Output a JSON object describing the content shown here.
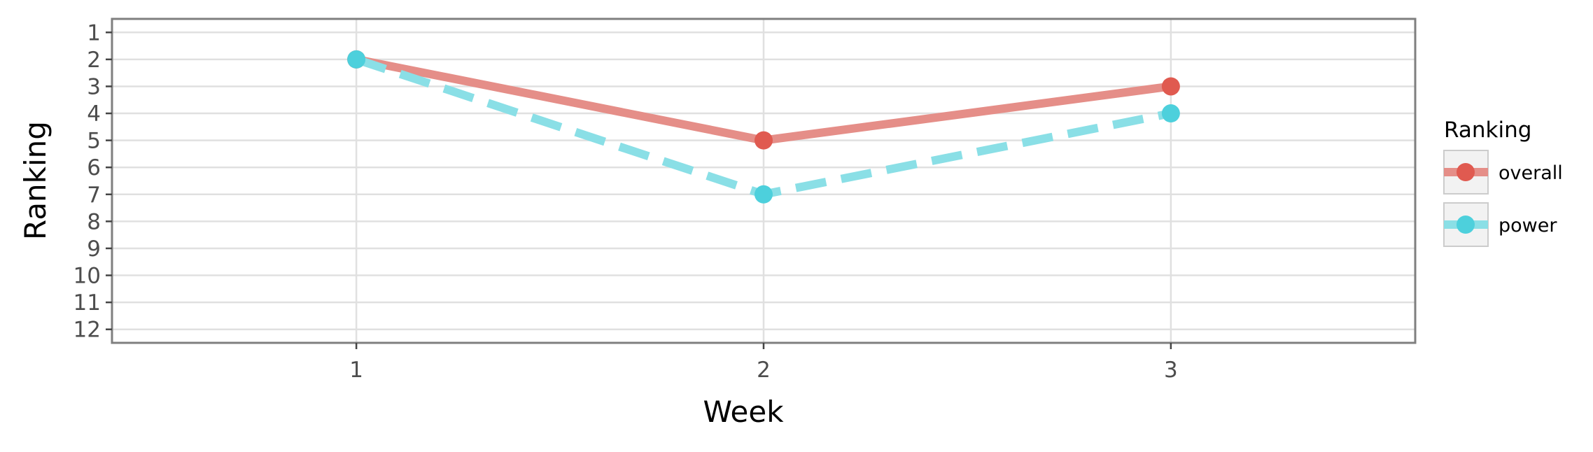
{
  "chart_data": {
    "type": "line",
    "title": "",
    "xlabel": "Week",
    "ylabel": "Ranking",
    "x": [
      1,
      2,
      3
    ],
    "xlim": [
      0.4,
      3.6
    ],
    "ylim": [
      12.5,
      0.5
    ],
    "y_reversed": true,
    "x_ticks": [
      1,
      2,
      3
    ],
    "y_ticks": [
      1,
      2,
      3,
      4,
      5,
      6,
      7,
      8,
      9,
      10,
      11,
      12
    ],
    "grid": true,
    "legend": {
      "title": "Ranking",
      "position": "right"
    },
    "series": [
      {
        "name": "overall",
        "values": [
          2,
          5,
          3
        ],
        "color": "#E05A50",
        "line_color": "#E58E88",
        "dash": "solid"
      },
      {
        "name": "power",
        "values": [
          2,
          7,
          4
        ],
        "color": "#4DD0DC",
        "line_color": "#8ADFE6",
        "dash": "dashed"
      }
    ]
  }
}
